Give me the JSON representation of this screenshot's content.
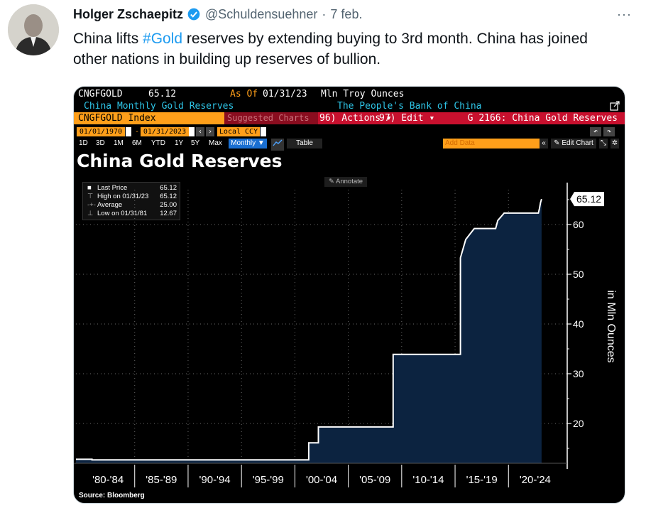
{
  "tweet": {
    "author": "Holger Zschaepitz",
    "handle": "@Schuldensuehner",
    "sep": "·",
    "date": "7 feb.",
    "more": "···",
    "text_1": "China lifts ",
    "hashtag": "#Gold",
    "text_2": " reserves by extending buying to 3rd month. China has joined other nations in building up reserves of bullion."
  },
  "terminal": {
    "ticker": "CNGFGOLD",
    "last_value": "65.12",
    "as_of_label": "As Of",
    "as_of_date": "01/31/23",
    "units": "Mln Troy Ounces",
    "series_desc": "China Monthly Gold Reserves",
    "source_org": "The People's Bank of China",
    "index_label": "CNGFGOLD Index",
    "suggested": "Suggested Charts",
    "actions": "96) Actions ▾",
    "edit": "97) Edit ▾",
    "series_code": "G 2166: China Gold Reserves",
    "date_from": "01/01/1970",
    "date_to": "01/31/2023",
    "currency": "Local CCY",
    "periods": [
      "1D",
      "3D",
      "1M",
      "6M",
      "YTD",
      "1Y",
      "5Y",
      "Max"
    ],
    "frequency": "Monthly ▼",
    "table_btn": "Table",
    "add_data": "Add Data",
    "edit_chart": "Edit Chart",
    "annotate": "Annotate",
    "source_note": "Source: Bloomberg"
  },
  "legend": {
    "rows": [
      {
        "label": "Last Price",
        "value": "65.12"
      },
      {
        "label": "High on 01/31/23",
        "value": "65.12"
      },
      {
        "label": "Average",
        "value": "25.00"
      },
      {
        "label": "Low on 01/31/81",
        "value": "12.67"
      }
    ]
  },
  "colors": {
    "fill": "#0c2340",
    "line": "#ffffff",
    "grid": "#6a6a6a",
    "amber": "#ff9f1a",
    "red": "#c8102e",
    "accent": "#1d9bf0"
  },
  "chart_data": {
    "type": "area",
    "title": "China Gold Reserves",
    "ylabel": "in Mln Ounces",
    "ylim": [
      12,
      67
    ],
    "yticks": [
      20,
      30,
      40,
      50,
      60
    ],
    "last_label": "65.12",
    "categories": [
      "'80-'84",
      "'85-'89",
      "'90-'94",
      "'95-'99",
      "'00-'04",
      "'05-'09",
      "'10-'14",
      "'15-'19",
      "'20-'24"
    ],
    "series": [
      {
        "values": [
          [
            1979.5,
            12.8
          ],
          [
            1981.0,
            12.8
          ],
          [
            1981.0,
            12.67
          ],
          [
            2001.3,
            12.67
          ],
          [
            2001.3,
            16.1
          ],
          [
            2002.2,
            16.1
          ],
          [
            2002.2,
            19.3
          ],
          [
            2009.2,
            19.3
          ],
          [
            2009.2,
            33.89
          ],
          [
            2015.5,
            33.89
          ],
          [
            2015.5,
            53.3
          ],
          [
            2016.0,
            57.0
          ],
          [
            2016.8,
            59.2
          ],
          [
            2018.8,
            59.2
          ],
          [
            2019.0,
            60.8
          ],
          [
            2019.6,
            62.3
          ],
          [
            2022.8,
            62.3
          ],
          [
            2022.9,
            63.2
          ],
          [
            2023.0,
            64.4
          ],
          [
            2023.1,
            65.12
          ]
        ]
      }
    ]
  }
}
